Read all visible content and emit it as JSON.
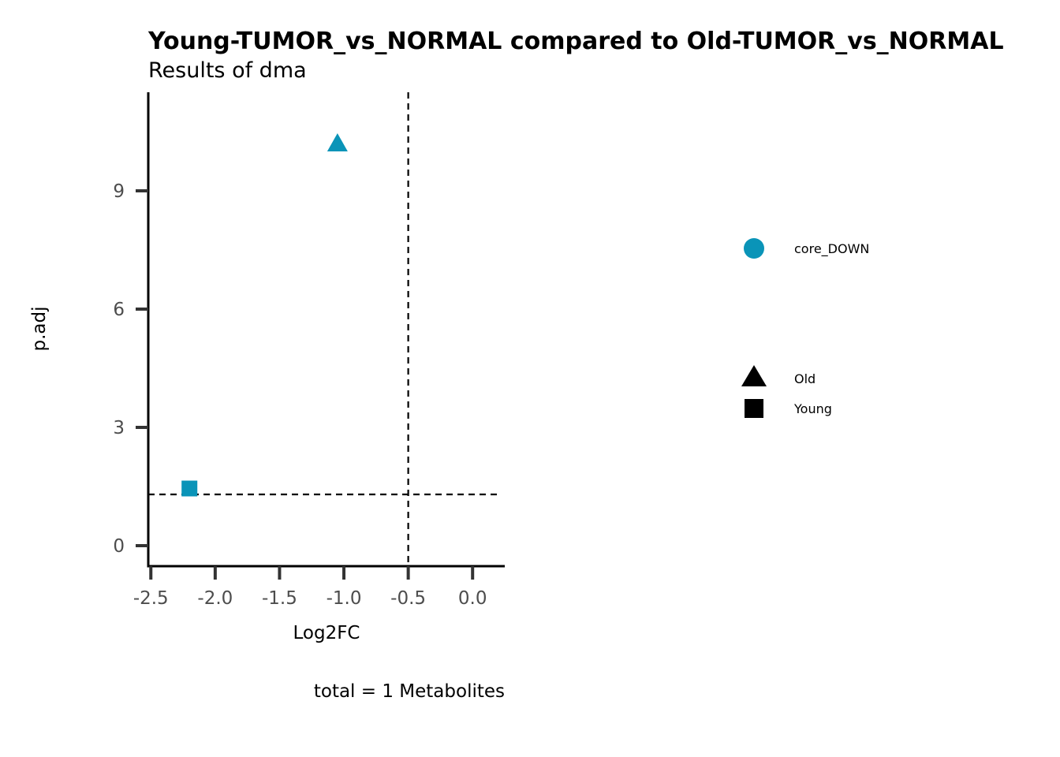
{
  "chart_data": {
    "type": "scatter",
    "title": "Young-TUMOR_vs_NORMAL compared to Old-TUMOR_vs_NORMAL",
    "subtitle": "Results of dma",
    "xlabel": "Log2FC",
    "ylabel": "p.adj",
    "caption": "total = 1 Metabolites",
    "xlim": [
      -2.52,
      0.25
    ],
    "ylim": [
      -0.52,
      11.5
    ],
    "x_ticks": [
      "-2.5",
      "-2.0",
      "-1.5",
      "-1.0",
      "-0.5",
      "0.0"
    ],
    "y_ticks": [
      "0",
      "3",
      "6",
      "9"
    ],
    "x_tick_values": [
      -2.5,
      -2.0,
      -1.5,
      -1.0,
      -0.5,
      0.0
    ],
    "y_tick_values": [
      0,
      3,
      6,
      9
    ],
    "grid": false,
    "reference_lines": {
      "vertical_x": -0.5,
      "horizontal_y": 1.3
    },
    "points": [
      {
        "x": -1.05,
        "y": 10.2,
        "group": "Old",
        "shape": "triangle",
        "color_group": "core_DOWN"
      },
      {
        "x": -2.2,
        "y": 1.45,
        "group": "Young",
        "shape": "square",
        "color_group": "core_DOWN"
      }
    ],
    "point_color": "#0a94b8",
    "legend_placement": "right",
    "legend": {
      "color": [
        {
          "label": "core_DOWN",
          "color": "#0a94b8",
          "shape": "circle"
        }
      ],
      "shape": [
        {
          "label": "Old",
          "shape": "triangle"
        },
        {
          "label": "Young",
          "shape": "square"
        }
      ]
    }
  }
}
